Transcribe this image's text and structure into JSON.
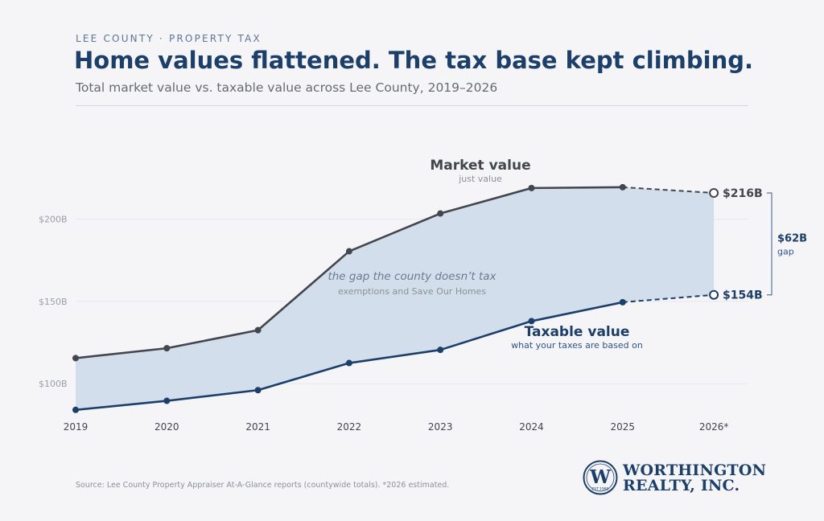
{
  "header": {
    "eyebrow": "LEE COUNTY · PROPERTY TAX",
    "title": "Home values flattened. The tax base kept climbing.",
    "subtitle": "Total market value vs. taxable value across Lee County, 2019–2026"
  },
  "chart_data": {
    "type": "area",
    "x": [
      "2019",
      "2020",
      "2021",
      "2022",
      "2023",
      "2024",
      "2025",
      "2026*"
    ],
    "series": [
      {
        "name": "Market value",
        "sublabel": "just value",
        "values": [
          115.5,
          121.5,
          132.5,
          180.5,
          203.5,
          219,
          219.5,
          216
        ],
        "color": "#44464d",
        "estimated_from_index": 6
      },
      {
        "name": "Taxable value",
        "sublabel": "what your taxes are based on",
        "values": [
          84,
          89.5,
          96,
          112.5,
          120.5,
          138,
          149.5,
          154
        ],
        "color": "#1c3f6a",
        "estimated_from_index": 6
      }
    ],
    "y_ticks": [
      100,
      150,
      200
    ],
    "y_tick_labels": [
      "$100B",
      "$150B",
      "$200B"
    ],
    "ylim": [
      79,
      239
    ],
    "gridlines": true,
    "fill_color": "#d3deec",
    "gap_annotation": {
      "title": "the gap the county doesn’t tax",
      "subtitle": "exemptions and Save Our Homes"
    },
    "end_labels": {
      "market": "$216B",
      "taxable": "$154B"
    },
    "bracket": {
      "value_label": "$62B",
      "word": "gap"
    }
  },
  "footer": {
    "source": "Source: Lee County Property Appraiser At-A-Glance reports (countywide totals). *2026 estimated.",
    "logo_line1": "WORTHINGTON",
    "logo_line2": "REALTY, INC.",
    "logo_badge": "EST.1985"
  }
}
